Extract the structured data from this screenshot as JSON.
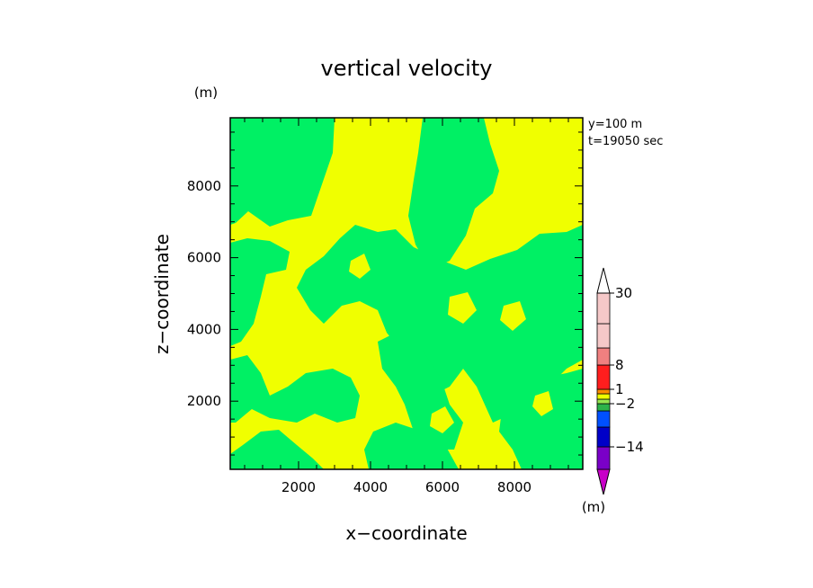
{
  "chart_data": {
    "type": "heatmap",
    "title": "vertical velocity",
    "xlabel": "x−coordinate",
    "ylabel": "z−coordinate",
    "x_unit": "(m)",
    "y_unit": "(m)",
    "colorbar_unit": "(m)",
    "annotations": [
      "y=100  m",
      "t=19050 sec"
    ],
    "xlim": [
      100,
      9900
    ],
    "ylim": [
      100,
      9900
    ],
    "x_ticks": [
      2000,
      4000,
      6000,
      8000
    ],
    "y_ticks": [
      2000,
      4000,
      6000,
      8000
    ],
    "x_tick_labels": [
      "2000",
      "4000",
      "6000",
      "8000"
    ],
    "y_tick_labels": [
      "2000",
      "4000",
      "6000",
      "8000"
    ],
    "colorbar": {
      "levels": [
        -30,
        -14,
        -8,
        -2,
        -1,
        0,
        1,
        2,
        8,
        14,
        30
      ],
      "labels": [
        {
          "text": "30",
          "level": 30
        },
        {
          "text": "8",
          "level": 8
        },
        {
          "text": "1",
          "level": 1
        },
        {
          "text": "−2",
          "level": -2
        },
        {
          "text": "−14",
          "level": -14
        }
      ],
      "colors": [
        "#c800c8",
        "#7a00c8",
        "#0000c8",
        "#0050ff",
        "#2cb24a",
        "#96e650",
        "#f0ff00",
        "#ff8c00",
        "#ff1e1e",
        "#f08080",
        "#f5c8c8"
      ],
      "extend_low_color": "#c800c8",
      "extend_high_color": "#ffffff"
    },
    "field_colors": {
      "positive": "#f0ff00",
      "negative": "#00f064"
    },
    "grid": false
  }
}
